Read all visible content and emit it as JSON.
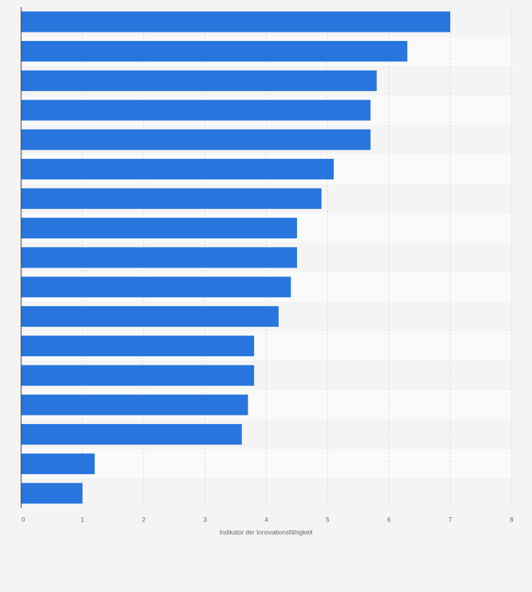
{
  "chart_data": {
    "type": "bar",
    "orientation": "horizontal",
    "x_label": "Indikator der Innovationsfähigkeit",
    "categories": [
      null,
      null,
      null,
      null,
      null,
      null,
      null,
      null,
      null,
      null,
      null,
      null,
      null,
      null,
      null,
      null,
      null
    ],
    "values": [
      7.0,
      6.3,
      5.8,
      5.7,
      5.7,
      5.1,
      4.9,
      4.5,
      4.5,
      4.4,
      4.2,
      3.8,
      3.8,
      3.7,
      3.6,
      1.2,
      1.0
    ],
    "color": "#2876dd",
    "xlim": [
      0,
      8
    ],
    "xticks": [
      0,
      1,
      2,
      3,
      4,
      5,
      6,
      7,
      8
    ],
    "grid": true
  }
}
